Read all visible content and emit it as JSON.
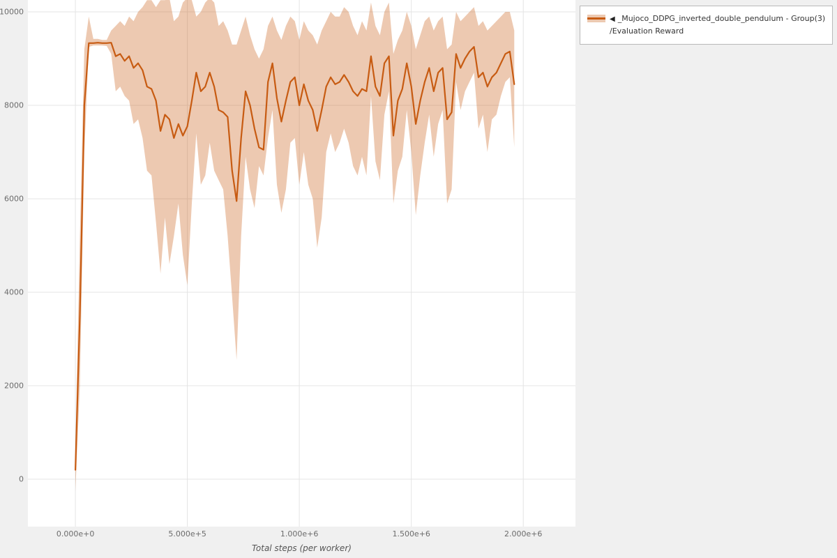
{
  "legend": {
    "marker": "◀",
    "series_label": "_Mujoco_DDPG_inverted_double_pendulum - Group(3)",
    "metric_label": "/Evaluation Reward"
  },
  "chart_data": {
    "type": "line",
    "title": "",
    "xlabel": "Total steps (per worker)",
    "ylabel": "",
    "grid": true,
    "legend_position": "top-right",
    "xlim": [
      -212000,
      2233000
    ],
    "ylim": [
      -1015,
      10253
    ],
    "x_ticks": {
      "values": [
        0,
        500000,
        1000000,
        1500000,
        2000000
      ],
      "labels": [
        "0.000e+0",
        "5.000e+5",
        "1.000e+6",
        "1.500e+6",
        "2.000e+6"
      ]
    },
    "y_ticks": {
      "values": [
        0,
        2000,
        4000,
        6000,
        8000,
        10000
      ],
      "labels": [
        "0",
        "2000",
        "4000",
        "6000",
        "8000",
        "10000"
      ]
    },
    "colors": {
      "line": "#c75b12",
      "band": "rgba(199,91,18,0.33)",
      "grid": "#e4e4e4",
      "plot_background": "#ffffff",
      "page_background": "#f0f0f0"
    },
    "series": [
      {
        "name": "_Mujoco_DDPG_inverted_double_pendulum - Group(3) /Evaluation Reward",
        "x": [
          0,
          20000,
          40000,
          60000,
          80000,
          100000,
          120000,
          140000,
          160000,
          180000,
          200000,
          220000,
          240000,
          260000,
          280000,
          300000,
          320000,
          340000,
          360000,
          380000,
          400000,
          420000,
          440000,
          460000,
          480000,
          500000,
          520000,
          540000,
          560000,
          580000,
          600000,
          620000,
          640000,
          660000,
          680000,
          700000,
          720000,
          740000,
          760000,
          780000,
          800000,
          820000,
          840000,
          860000,
          880000,
          900000,
          920000,
          940000,
          960000,
          980000,
          1000000,
          1020000,
          1040000,
          1060000,
          1080000,
          1100000,
          1120000,
          1140000,
          1160000,
          1180000,
          1200000,
          1220000,
          1240000,
          1260000,
          1280000,
          1300000,
          1320000,
          1340000,
          1360000,
          1380000,
          1400000,
          1420000,
          1440000,
          1460000,
          1480000,
          1500000,
          1520000,
          1540000,
          1560000,
          1580000,
          1600000,
          1620000,
          1640000,
          1660000,
          1680000,
          1700000,
          1720000,
          1740000,
          1760000,
          1780000,
          1800000,
          1820000,
          1840000,
          1860000,
          1880000,
          1900000,
          1920000,
          1940000,
          1960000
        ],
        "mean": [
          200,
          3500,
          8000,
          9330,
          9330,
          9340,
          9330,
          9330,
          9340,
          9050,
          9100,
          8950,
          9050,
          8800,
          8900,
          8750,
          8400,
          8350,
          8100,
          7450,
          7800,
          7700,
          7300,
          7600,
          7350,
          7550,
          8100,
          8700,
          8300,
          8400,
          8700,
          8400,
          7900,
          7850,
          7750,
          6600,
          5950,
          7300,
          8300,
          8000,
          7500,
          7100,
          7050,
          8500,
          8900,
          8150,
          7650,
          8100,
          8500,
          8600,
          8000,
          8450,
          8100,
          7900,
          7450,
          7900,
          8400,
          8600,
          8450,
          8500,
          8650,
          8500,
          8300,
          8200,
          8350,
          8300,
          9050,
          8400,
          8200,
          8900,
          9050,
          7350,
          8100,
          8350,
          8900,
          8400,
          7600,
          8100,
          8500,
          8800,
          8300,
          8700,
          8800,
          7700,
          7850,
          9100,
          8800,
          9000,
          9150,
          9250,
          8600,
          8700,
          8400,
          8600,
          8700,
          8900,
          9100,
          9150,
          8450
        ],
        "lower": [
          -250,
          2000,
          7000,
          9250,
          9280,
          9280,
          9280,
          9270,
          9100,
          8300,
          8400,
          8200,
          8100,
          7600,
          7700,
          7300,
          6600,
          6500,
          5500,
          4400,
          5600,
          4600,
          5200,
          5900,
          4800,
          4150,
          5900,
          7400,
          6300,
          6500,
          7200,
          6600,
          6400,
          6200,
          5200,
          3900,
          2550,
          5200,
          6900,
          6200,
          5800,
          6700,
          6500,
          7300,
          7900,
          6300,
          5700,
          6200,
          7200,
          7300,
          6300,
          7000,
          6300,
          6000,
          4950,
          5600,
          7000,
          7400,
          7000,
          7200,
          7500,
          7200,
          6700,
          6500,
          6900,
          6500,
          8200,
          6800,
          6400,
          7800,
          8300,
          5900,
          6600,
          6900,
          7900,
          7000,
          5650,
          6500,
          7200,
          7800,
          6900,
          7600,
          7900,
          5900,
          6200,
          8500,
          7900,
          8300,
          8500,
          8700,
          7500,
          7800,
          7000,
          7700,
          7800,
          8200,
          8500,
          8600,
          7100
        ],
        "upper": [
          700,
          5200,
          9200,
          9900,
          9420,
          9420,
          9400,
          9400,
          9600,
          9700,
          9800,
          9700,
          9900,
          9800,
          10000,
          10100,
          10250,
          10250,
          10100,
          10250,
          10250,
          10300,
          9800,
          9900,
          10200,
          10300,
          10250,
          9900,
          10000,
          10200,
          10300,
          10200,
          9700,
          9800,
          9600,
          9300,
          9300,
          9600,
          9900,
          9500,
          9200,
          9000,
          9200,
          9700,
          9900,
          9600,
          9400,
          9700,
          9900,
          9800,
          9400,
          9800,
          9600,
          9500,
          9300,
          9600,
          9800,
          10000,
          9900,
          9900,
          10100,
          10000,
          9700,
          9500,
          9800,
          9600,
          10200,
          9700,
          9500,
          10000,
          10200,
          9100,
          9400,
          9600,
          10000,
          9700,
          9200,
          9500,
          9800,
          9900,
          9600,
          9800,
          9900,
          9200,
          9300,
          10000,
          9800,
          9900,
          10000,
          10100,
          9700,
          9800,
          9600,
          9700,
          9800,
          9900,
          10000,
          10000,
          9600
        ]
      }
    ]
  }
}
